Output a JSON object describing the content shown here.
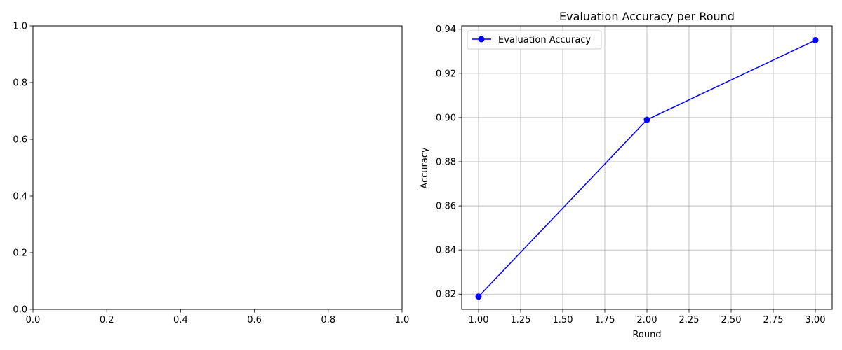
{
  "chart_data": [
    {
      "type": "line",
      "title": "",
      "xlabel": "",
      "ylabel": "",
      "xlim": [
        0,
        1
      ],
      "ylim": [
        0,
        1
      ],
      "xticks": [
        0.0,
        0.2,
        0.4,
        0.6,
        0.8,
        1.0
      ],
      "xtick_labels": [
        "0.0",
        "0.2",
        "0.4",
        "0.6",
        "0.8",
        "1.0"
      ],
      "yticks": [
        0.0,
        0.2,
        0.4,
        0.6,
        0.8,
        1.0
      ],
      "ytick_labels": [
        "0.0",
        "0.2",
        "0.4",
        "0.6",
        "0.8",
        "1.0"
      ],
      "grid": false,
      "series": []
    },
    {
      "type": "line",
      "title": "Evaluation Accuracy per Round",
      "xlabel": "Round",
      "ylabel": "Accuracy",
      "xlim": [
        0.9,
        3.1
      ],
      "ylim": [
        0.8131,
        0.9415
      ],
      "xticks": [
        1.0,
        1.25,
        1.5,
        1.75,
        2.0,
        2.25,
        2.5,
        2.75,
        3.0
      ],
      "xtick_labels": [
        "1.00",
        "1.25",
        "1.50",
        "1.75",
        "2.00",
        "2.25",
        "2.50",
        "2.75",
        "3.00"
      ],
      "yticks": [
        0.82,
        0.84,
        0.86,
        0.88,
        0.9,
        0.92,
        0.94
      ],
      "ytick_labels": [
        "0.82",
        "0.84",
        "0.86",
        "0.88",
        "0.90",
        "0.92",
        "0.94"
      ],
      "grid": true,
      "legend": "top-left",
      "series": [
        {
          "name": "Evaluation Accuracy",
          "color": "#0000ff",
          "marker": "circle",
          "x": [
            1,
            2,
            3
          ],
          "y": [
            0.8189,
            0.899,
            0.935
          ]
        }
      ]
    }
  ]
}
